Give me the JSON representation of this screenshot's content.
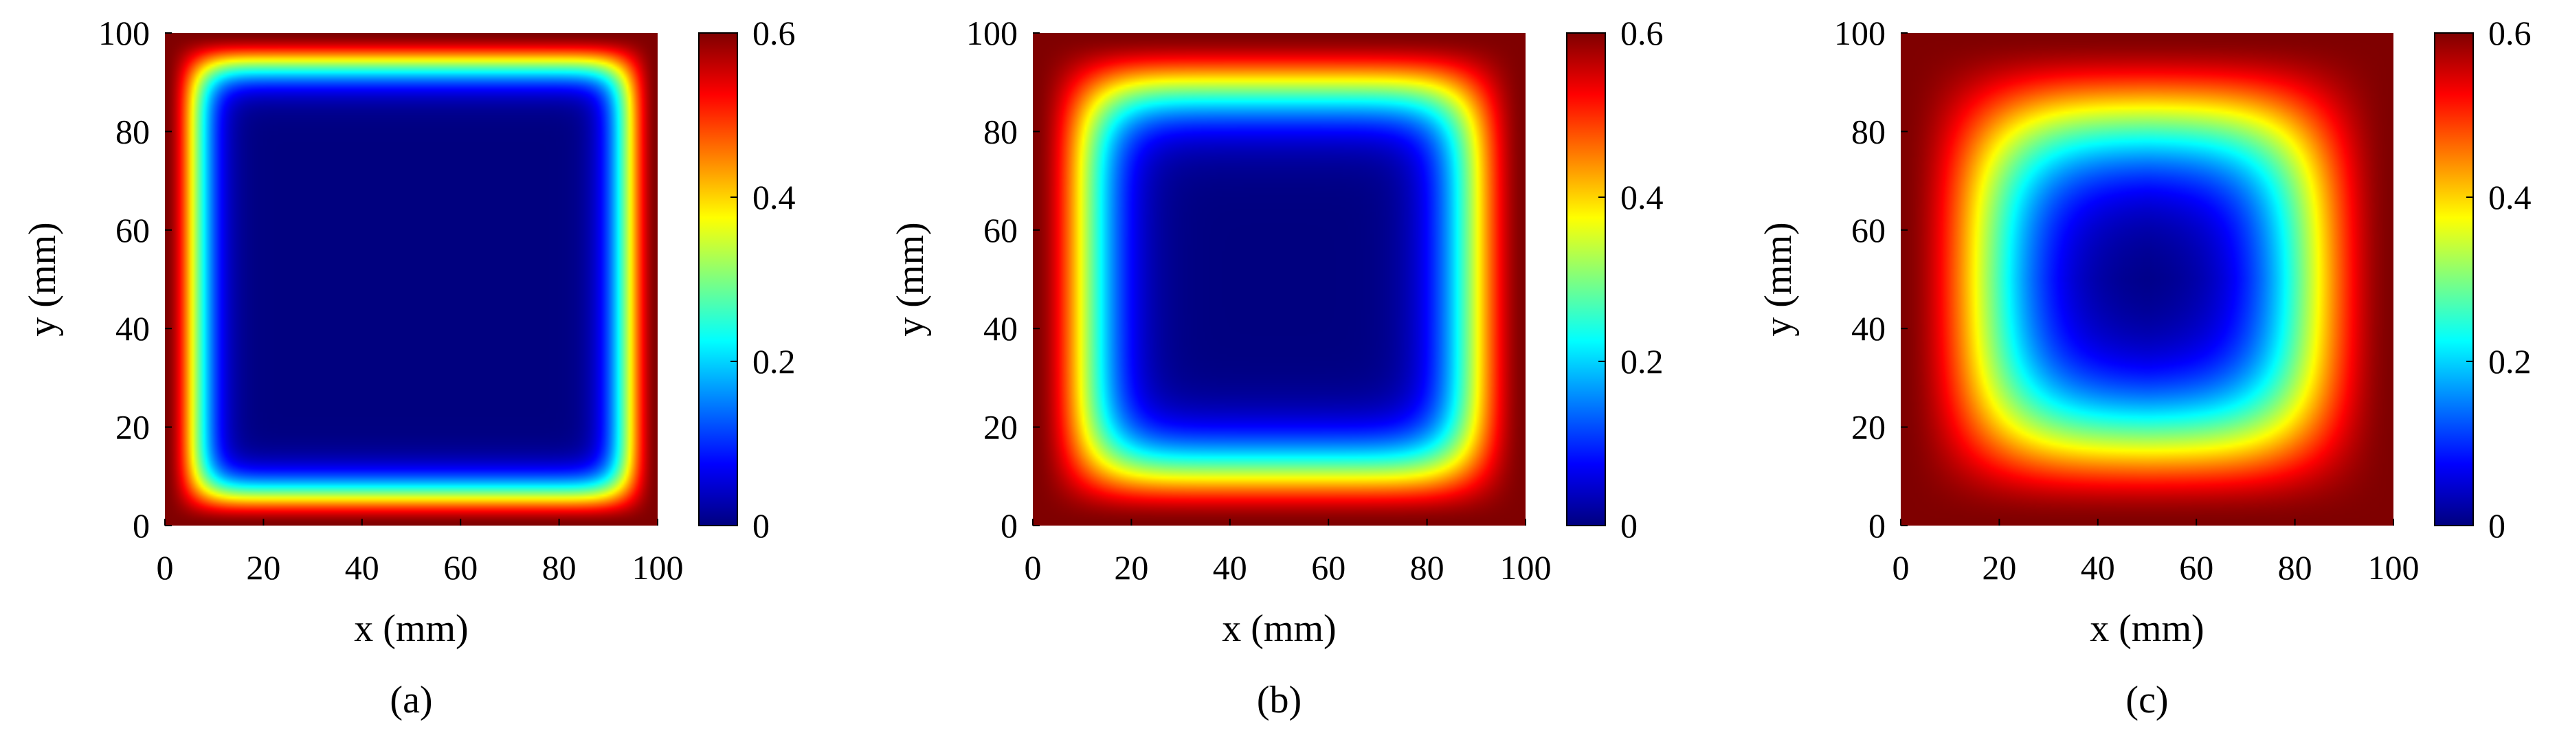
{
  "colorbar_colors": [
    "#00007f",
    "#0000ff",
    "#007fff",
    "#00ffff",
    "#7fff7f",
    "#ffff00",
    "#ff7f00",
    "#ff0000",
    "#7f0000"
  ],
  "chart_data": [
    {
      "type": "heatmap",
      "caption": "(a)",
      "xlabel": "x (mm)",
      "ylabel": "y (mm)",
      "xlim": [
        0,
        100
      ],
      "ylim": [
        0,
        100
      ],
      "xticks": [
        "0",
        "20",
        "40",
        "60",
        "80",
        "100"
      ],
      "yticks": [
        "0",
        "20",
        "40",
        "60",
        "80",
        "100"
      ],
      "clim": [
        0,
        0.6
      ],
      "cticks": [
        "0",
        "0.2",
        "0.4",
        "0.6"
      ],
      "colormap": "jet",
      "field": {
        "boundary_value": 0.6,
        "interior_value": 0.0,
        "edge_width_mm": 8
      }
    },
    {
      "type": "heatmap",
      "caption": "(b)",
      "xlabel": "x (mm)",
      "ylabel": "y (mm)",
      "xlim": [
        0,
        100
      ],
      "ylim": [
        0,
        100
      ],
      "xticks": [
        "0",
        "20",
        "40",
        "60",
        "80",
        "100"
      ],
      "yticks": [
        "0",
        "20",
        "40",
        "60",
        "80",
        "100"
      ],
      "clim": [
        0,
        0.6
      ],
      "cticks": [
        "0",
        "0.2",
        "0.4",
        "0.6"
      ],
      "colormap": "jet",
      "field": {
        "boundary_value": 0.6,
        "interior_value": 0.0,
        "edge_width_mm": 14
      }
    },
    {
      "type": "heatmap",
      "caption": "(c)",
      "xlabel": "x (mm)",
      "ylabel": "y (mm)",
      "xlim": [
        0,
        100
      ],
      "ylim": [
        0,
        100
      ],
      "xticks": [
        "0",
        "20",
        "40",
        "60",
        "80",
        "100"
      ],
      "yticks": [
        "0",
        "20",
        "40",
        "60",
        "80",
        "100"
      ],
      "clim": [
        0,
        0.6
      ],
      "cticks": [
        "0",
        "0.2",
        "0.4",
        "0.6"
      ],
      "colormap": "jet",
      "field": {
        "boundary_value": 0.6,
        "interior_value": 0.0,
        "edge_width_mm": 22
      }
    }
  ]
}
